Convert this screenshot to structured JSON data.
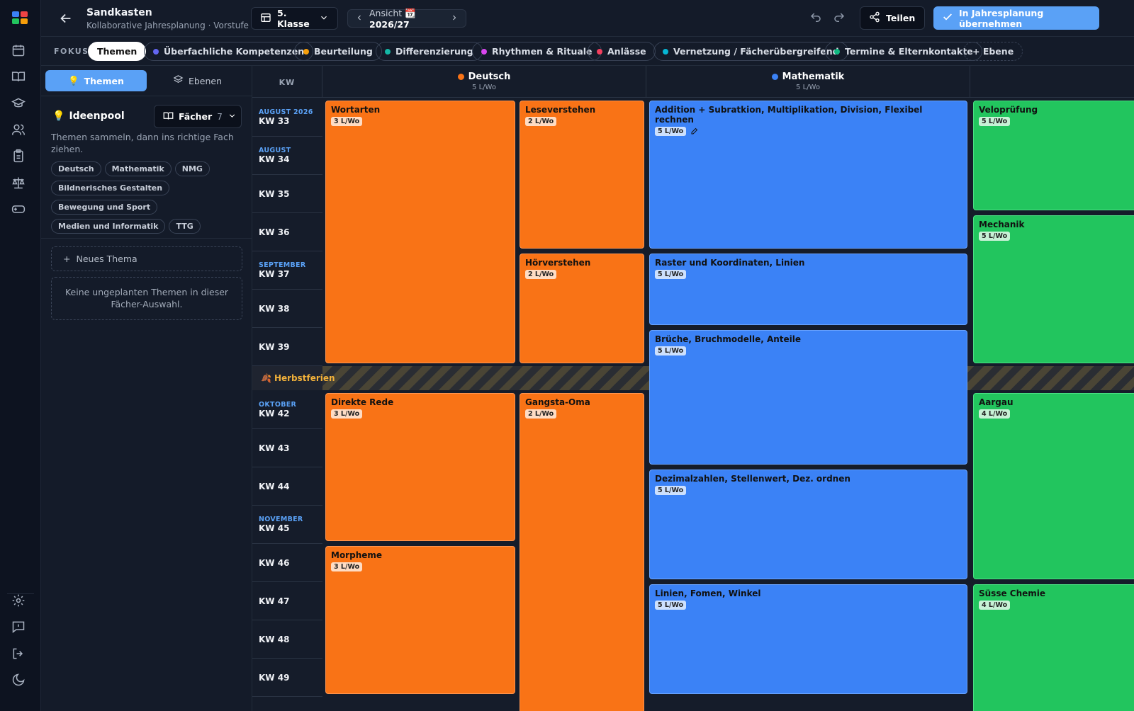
{
  "header": {
    "title": "Sandkasten",
    "subtitle": "Kollaborative Jahresplanung · Vorstufe",
    "klasse": "5. Klasse",
    "ansicht_label": "Ansicht",
    "ansicht_icon": "📆",
    "ansicht_year": "2026/27",
    "teilen": "Teilen",
    "uebernehmen": "In Jahresplanung übernehmen"
  },
  "focus": {
    "label": "FOKUS",
    "chips": [
      {
        "label": "Themen",
        "active": true
      },
      {
        "label": "Überfachliche Kompetenzen",
        "color": "#6366f1"
      },
      {
        "label": "Beurteilung",
        "color": "#f59e0b"
      },
      {
        "label": "Differenzierung",
        "color": "#14b8a6"
      },
      {
        "label": "Rhythmen & Rituale",
        "color": "#d946ef"
      },
      {
        "label": "Anlässe",
        "color": "#f43f5e"
      },
      {
        "label": "Vernetzung / Fächerübergreifend",
        "color": "#06b6d4"
      },
      {
        "label": "Termine & Elternkontakte",
        "color": "#10b981"
      },
      {
        "label": "+ Ebene"
      }
    ]
  },
  "sidebar": {
    "tab_themen": "Themen",
    "tab_ebenen": "Ebenen",
    "ideenpool": "Ideenpool",
    "faecher": "Fächer",
    "faecher_count": "7",
    "hint": "Themen sammeln, dann ins richtige Fach ziehen.",
    "tags": [
      "Deutsch",
      "Mathematik",
      "NMG",
      "Bildnerisches Gestalten",
      "Bewegung und Sport",
      "Medien und Informatik",
      "TTG"
    ],
    "neues_thema": "Neues Thema",
    "empty": "Keine ungeplanten Themen in dieser Fächer-Auswahl."
  },
  "grid": {
    "kw_header": "KW",
    "columns": [
      {
        "name": "Deutsch",
        "lw": "5 L/Wo",
        "color": "#f97316"
      },
      {
        "name": "Mathematik",
        "lw": "5 L/Wo",
        "color": "#3b82f6"
      }
    ],
    "weeks": [
      {
        "month": "AUGUST 2026",
        "kw": "KW 33"
      },
      {
        "month": "AUGUST",
        "kw": "KW 34"
      },
      {
        "month": "",
        "kw": "KW 35"
      },
      {
        "month": "",
        "kw": "KW 36"
      },
      {
        "month": "SEPTEMBER",
        "kw": "KW 37"
      },
      {
        "month": "",
        "kw": "KW 38"
      },
      {
        "month": "",
        "kw": "KW 39"
      },
      {
        "month": "OKTOBER",
        "kw": "KW 42"
      },
      {
        "month": "",
        "kw": "KW 43"
      },
      {
        "month": "",
        "kw": "KW 44"
      },
      {
        "month": "NOVEMBER",
        "kw": "KW 45"
      },
      {
        "month": "",
        "kw": "KW 46"
      },
      {
        "month": "",
        "kw": "KW 47"
      },
      {
        "month": "",
        "kw": "KW 48"
      },
      {
        "month": "",
        "kw": "KW 49"
      }
    ],
    "ferien": "Herbstferien",
    "ferien_icon": "🍂",
    "blocks": {
      "wortarten": {
        "title": "Wortarten",
        "lw": "3 L/Wo"
      },
      "leseverstehen": {
        "title": "Leseverstehen",
        "lw": "2 L/Wo"
      },
      "hoerverstehen": {
        "title": "Hörverstehen",
        "lw": "2 L/Wo"
      },
      "direkte_rede": {
        "title": "Direkte Rede",
        "lw": "3 L/Wo"
      },
      "gangsta_oma": {
        "title": "Gangsta-Oma",
        "lw": "2 L/Wo"
      },
      "morpheme": {
        "title": "Morpheme",
        "lw": "3 L/Wo"
      },
      "addition": {
        "title": "Addition + Subratkion, Multiplikation, Division, Flexibel rechnen",
        "lw": "5 L/Wo"
      },
      "raster": {
        "title": "Raster und Koordinaten, Linien",
        "lw": "5 L/Wo"
      },
      "brueche": {
        "title": "Brüche, Bruchmodelle, Anteile",
        "lw": "5 L/Wo"
      },
      "dezimal": {
        "title": "Dezimalzahlen, Stellenwert, Dez. ordnen",
        "lw": "5 L/Wo"
      },
      "linien": {
        "title": "Linien, Fomen, Winkel",
        "lw": "5 L/Wo"
      },
      "velo": {
        "title": "Veloprüfung",
        "lw": "5 L/Wo"
      },
      "mechanik": {
        "title": "Mechanik",
        "lw": "5 L/Wo"
      },
      "aargau": {
        "title": "Aargau",
        "lw": "4 L/Wo"
      },
      "chemie": {
        "title": "Süsse Chemie",
        "lw": "4 L/Wo"
      }
    }
  }
}
